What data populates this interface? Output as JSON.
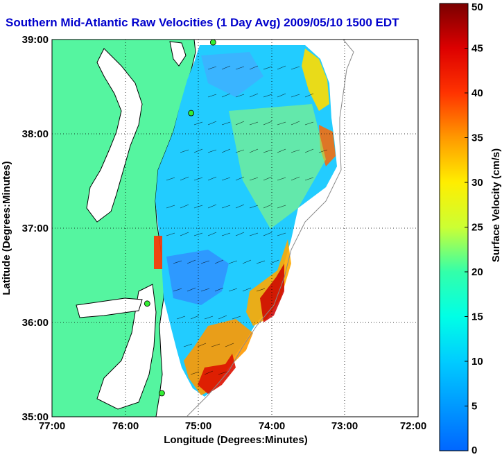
{
  "title": "Southern Mid-Atlantic Raw Velocities (1 Day Avg) 2009/05/10 1500 EDT",
  "chart_data": {
    "type": "heatmap",
    "xlabel": "Longitude (Degrees:Minutes)",
    "ylabel": "Latitude (Degrees:Minutes)",
    "xlim": [
      -77,
      -72
    ],
    "ylim": [
      35,
      39
    ],
    "x_ticks": [
      "77:00",
      "76:00",
      "75:00",
      "74:00",
      "73:00",
      "72:00"
    ],
    "y_ticks": [
      "35:00",
      "36:00",
      "37:00",
      "38:00",
      "39:00"
    ],
    "grid": true,
    "colorbar": {
      "label": "Surface Velocity (cm/s)",
      "min": 0,
      "max": 50,
      "ticks": [
        "0",
        "5",
        "10",
        "15",
        "20",
        "25",
        "30",
        "35",
        "40",
        "45",
        "50"
      ]
    },
    "colors": {
      "land": "#55f5a0",
      "water": "#ffffff",
      "coastline": "#000000",
      "title": "#0000cc",
      "station_marker": "#33ee33"
    },
    "stations": [
      {
        "lon": -74.8,
        "lat": 38.97
      },
      {
        "lon": -75.1,
        "lat": 38.22
      },
      {
        "lon": -75.7,
        "lat": 36.2
      },
      {
        "lon": -75.5,
        "lat": 35.25
      }
    ]
  }
}
